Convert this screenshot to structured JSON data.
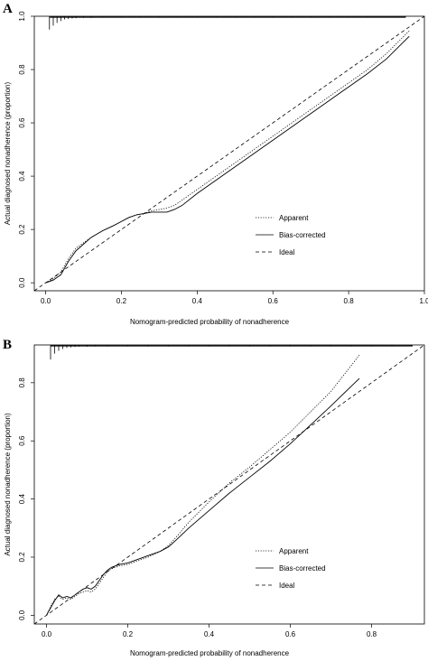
{
  "chart_data": [
    {
      "panel": "A",
      "type": "line",
      "xlabel": "Nomogram-predicted probability of nonadherence",
      "ylabel": "Actual diagnosed nonadherence (proportion)",
      "xlim": [
        -0.03,
        1.0
      ],
      "ylim": [
        -0.03,
        1.0
      ],
      "xticks": [
        "0.0",
        "0.2",
        "0.4",
        "0.6",
        "0.8",
        "1.0"
      ],
      "yticks": [
        "0.0",
        "0.2",
        "0.4",
        "0.6",
        "0.8",
        "1.0"
      ],
      "legend": {
        "position": "right-center",
        "entries": [
          "Apparent",
          "Bias-corrected",
          "Ideal"
        ]
      },
      "grid": false,
      "series": [
        {
          "name": "Apparent",
          "style": "dotted",
          "x": [
            0.0,
            0.02,
            0.04,
            0.06,
            0.08,
            0.1,
            0.12,
            0.15,
            0.18,
            0.2,
            0.22,
            0.24,
            0.26,
            0.28,
            0.3,
            0.32,
            0.34,
            0.36,
            0.4,
            0.45,
            0.5,
            0.55,
            0.6,
            0.65,
            0.7,
            0.75,
            0.8,
            0.85,
            0.9,
            0.96
          ],
          "y": [
            0.0,
            0.015,
            0.04,
            0.09,
            0.13,
            0.15,
            0.17,
            0.195,
            0.215,
            0.23,
            0.245,
            0.255,
            0.26,
            0.27,
            0.275,
            0.28,
            0.29,
            0.31,
            0.35,
            0.4,
            0.45,
            0.5,
            0.55,
            0.6,
            0.65,
            0.7,
            0.75,
            0.8,
            0.86,
            0.945
          ]
        },
        {
          "name": "Bias-corrected",
          "style": "solid",
          "x": [
            0.0,
            0.02,
            0.04,
            0.06,
            0.08,
            0.1,
            0.12,
            0.15,
            0.18,
            0.2,
            0.22,
            0.24,
            0.26,
            0.28,
            0.3,
            0.32,
            0.34,
            0.36,
            0.4,
            0.45,
            0.5,
            0.55,
            0.6,
            0.65,
            0.7,
            0.75,
            0.8,
            0.85,
            0.9,
            0.96
          ],
          "y": [
            0.0,
            0.01,
            0.03,
            0.08,
            0.12,
            0.145,
            0.17,
            0.195,
            0.215,
            0.23,
            0.245,
            0.255,
            0.26,
            0.265,
            0.265,
            0.265,
            0.275,
            0.29,
            0.335,
            0.385,
            0.435,
            0.485,
            0.535,
            0.585,
            0.635,
            0.685,
            0.735,
            0.785,
            0.84,
            0.925
          ]
        },
        {
          "name": "Ideal",
          "style": "dashed",
          "x": [
            -0.03,
            1.0
          ],
          "y": [
            -0.03,
            1.0
          ]
        }
      ],
      "rug_x": [
        0.01,
        0.02,
        0.03,
        0.04,
        0.05,
        0.06,
        0.07,
        0.08,
        0.1,
        0.12,
        0.15,
        0.2,
        0.25,
        0.3,
        0.35,
        0.4,
        0.45,
        0.5,
        0.55,
        0.6,
        0.65,
        0.7,
        0.75,
        0.8,
        0.85,
        0.9,
        0.95
      ],
      "rug_len": [
        0.05,
        0.035,
        0.025,
        0.018,
        0.012,
        0.01,
        0.008,
        0.007,
        0.006,
        0.006,
        0.005,
        0.005,
        0.005,
        0.005,
        0.005,
        0.005,
        0.005,
        0.005,
        0.005,
        0.005,
        0.005,
        0.005,
        0.005,
        0.005,
        0.005,
        0.005,
        0.005
      ]
    },
    {
      "panel": "B",
      "type": "line",
      "xlabel": "Nomogram-predicted probability of nonadherence",
      "ylabel": "Actual diagnosed nonadherence (proportion)",
      "xlim": [
        -0.03,
        0.93
      ],
      "ylim": [
        -0.03,
        0.93
      ],
      "xticks": [
        "0.0",
        "0.2",
        "0.4",
        "0.6",
        "0.8"
      ],
      "yticks": [
        "0.0",
        "0.2",
        "0.4",
        "0.6",
        "0.8"
      ],
      "legend": {
        "position": "bottom-right",
        "entries": [
          "Apparent",
          "Bias-corrected",
          "Ideal"
        ]
      },
      "grid": false,
      "series": [
        {
          "name": "Apparent",
          "style": "dotted",
          "x": [
            0.0,
            0.01,
            0.02,
            0.03,
            0.04,
            0.05,
            0.06,
            0.07,
            0.08,
            0.09,
            0.1,
            0.11,
            0.12,
            0.13,
            0.14,
            0.15,
            0.16,
            0.18,
            0.2,
            0.22,
            0.25,
            0.28,
            0.3,
            0.32,
            0.35,
            0.4,
            0.45,
            0.5,
            0.55,
            0.6,
            0.65,
            0.7,
            0.77
          ],
          "y": [
            0.0,
            0.03,
            0.055,
            0.065,
            0.055,
            0.06,
            0.055,
            0.065,
            0.075,
            0.08,
            0.085,
            0.08,
            0.09,
            0.11,
            0.13,
            0.15,
            0.16,
            0.17,
            0.175,
            0.185,
            0.2,
            0.22,
            0.24,
            0.27,
            0.32,
            0.39,
            0.455,
            0.51,
            0.57,
            0.63,
            0.7,
            0.77,
            0.895
          ]
        },
        {
          "name": "Bias-corrected",
          "style": "solid",
          "x": [
            0.0,
            0.01,
            0.02,
            0.03,
            0.04,
            0.05,
            0.06,
            0.07,
            0.08,
            0.09,
            0.1,
            0.11,
            0.12,
            0.13,
            0.14,
            0.15,
            0.16,
            0.18,
            0.2,
            0.22,
            0.25,
            0.28,
            0.3,
            0.32,
            0.35,
            0.4,
            0.45,
            0.5,
            0.55,
            0.6,
            0.65,
            0.7,
            0.77
          ],
          "y": [
            0.0,
            0.025,
            0.05,
            0.07,
            0.06,
            0.065,
            0.06,
            0.07,
            0.08,
            0.09,
            0.095,
            0.09,
            0.1,
            0.12,
            0.14,
            0.155,
            0.165,
            0.175,
            0.18,
            0.19,
            0.205,
            0.22,
            0.235,
            0.26,
            0.3,
            0.36,
            0.42,
            0.475,
            0.53,
            0.59,
            0.655,
            0.72,
            0.815
          ]
        },
        {
          "name": "Ideal",
          "style": "dashed",
          "x": [
            -0.03,
            0.93
          ],
          "y": [
            -0.03,
            0.93
          ]
        }
      ],
      "rug_x": [
        0.01,
        0.02,
        0.03,
        0.04,
        0.05,
        0.06,
        0.07,
        0.08,
        0.1,
        0.12,
        0.15,
        0.2,
        0.25,
        0.3,
        0.35,
        0.4,
        0.45,
        0.5,
        0.55,
        0.6,
        0.65,
        0.7,
        0.75,
        0.8,
        0.85,
        0.9
      ],
      "rug_len": [
        0.05,
        0.03,
        0.02,
        0.014,
        0.01,
        0.008,
        0.007,
        0.006,
        0.006,
        0.005,
        0.005,
        0.005,
        0.005,
        0.005,
        0.005,
        0.005,
        0.005,
        0.005,
        0.005,
        0.005,
        0.005,
        0.005,
        0.005,
        0.005,
        0.005,
        0.005
      ]
    }
  ]
}
